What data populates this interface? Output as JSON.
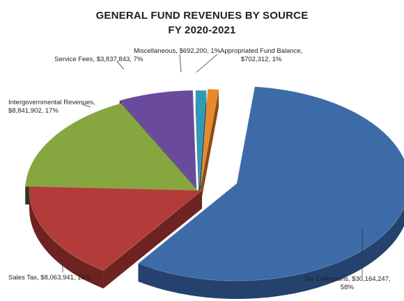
{
  "chart_data": {
    "type": "pie",
    "title": "GENERAL FUND REVENUES BY SOURCE",
    "subtitle": "FY 2020-2021",
    "slices": [
      {
        "name": "Tax Collections",
        "amount": "$30,164,247",
        "percent": 58,
        "label_line1": "Tax Collections, $30,164,247,",
        "label_line2": "58%",
        "color": "#3d6ba8",
        "side": "#24426d"
      },
      {
        "name": "Sales Tax",
        "amount": "$8,063,941",
        "percent": 16,
        "label_line1": "Sales Tax, $8,063,941, 16%",
        "label_line2": "",
        "color": "#b33c3a",
        "side": "#6e2321"
      },
      {
        "name": "Intergovernmental Revenues",
        "amount": "$8,841,902",
        "percent": 17,
        "label_line1": "Intergovernmental Revenues,",
        "label_line2": "$8,841,902, 17%",
        "color": "#86a640",
        "side": "#2f3a1b"
      },
      {
        "name": "Service Fees",
        "amount": "$3,837,843",
        "percent": 7,
        "label_line1": "Service Fees, $3,837,843, 7%",
        "label_line2": "",
        "color": "#6a4a9c",
        "side": "#2a1d3f"
      },
      {
        "name": "Miscellaneous",
        "amount": "$692,200",
        "percent": 1,
        "label_line1": "Miscellaneous, $692,200, 1%",
        "label_line2": "",
        "color": "#2e9bb8",
        "side": "#14485a"
      },
      {
        "name": "Appropriated Fund Balance",
        "amount": "$702,312",
        "percent": 1,
        "label_line1": "Appropriated Fund Balance,",
        "label_line2": "$702,312, 1%",
        "color": "#e8892b",
        "side": "#8a4c12"
      }
    ]
  }
}
